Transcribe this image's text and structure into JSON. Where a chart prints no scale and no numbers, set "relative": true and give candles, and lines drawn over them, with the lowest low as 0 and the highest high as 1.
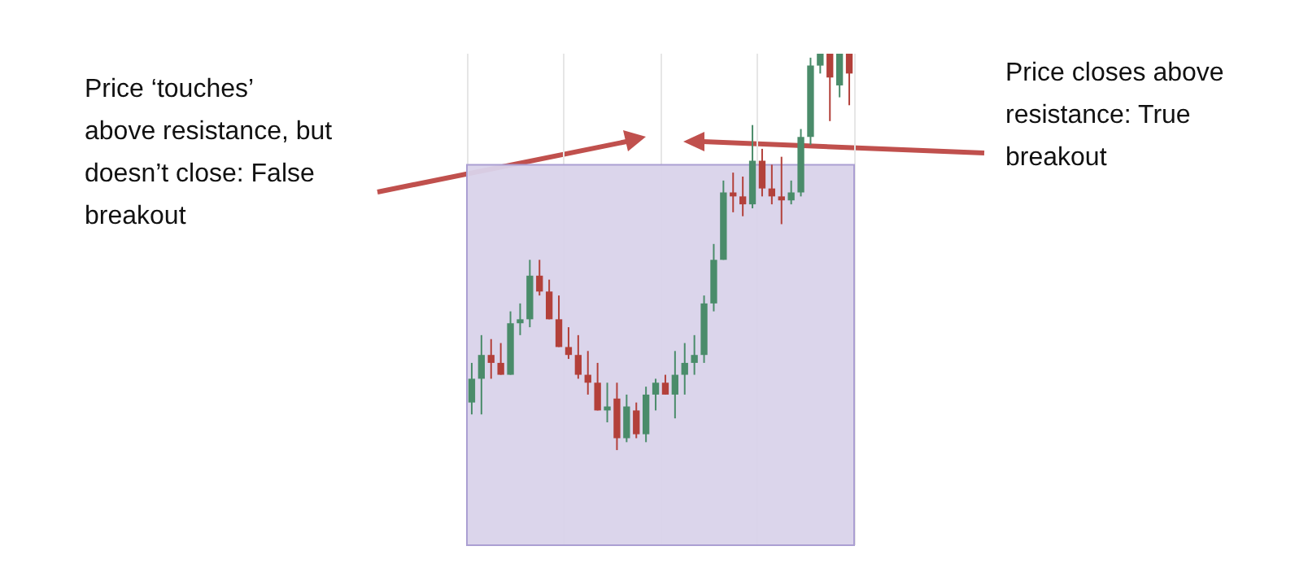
{
  "chart_data": {
    "type": "candlestick",
    "relative": true,
    "grid": true,
    "categories": [
      null,
      null,
      null,
      null,
      null,
      null,
      null,
      null,
      null,
      null,
      null,
      null,
      null,
      null,
      null,
      null,
      null,
      null,
      null,
      null,
      null,
      null,
      null,
      null,
      null,
      null,
      null,
      null,
      null,
      null,
      null,
      null,
      null,
      null,
      null,
      null,
      null,
      null,
      null,
      null
    ],
    "ohlc": [
      [
        0.12,
        0.22,
        0.09,
        0.18
      ],
      [
        0.18,
        0.29,
        0.09,
        0.24
      ],
      [
        0.24,
        0.28,
        0.18,
        0.22
      ],
      [
        0.22,
        0.27,
        0.19,
        0.19
      ],
      [
        0.19,
        0.35,
        0.19,
        0.32
      ],
      [
        0.32,
        0.37,
        0.29,
        0.33
      ],
      [
        0.33,
        0.48,
        0.31,
        0.44
      ],
      [
        0.44,
        0.48,
        0.39,
        0.4
      ],
      [
        0.4,
        0.43,
        0.33,
        0.33
      ],
      [
        0.33,
        0.39,
        0.26,
        0.26
      ],
      [
        0.26,
        0.31,
        0.23,
        0.24
      ],
      [
        0.24,
        0.29,
        0.18,
        0.19
      ],
      [
        0.19,
        0.25,
        0.14,
        0.17
      ],
      [
        0.17,
        0.22,
        0.1,
        0.1
      ],
      [
        0.1,
        0.17,
        0.07,
        0.11
      ],
      [
        0.13,
        0.17,
        0,
        0.03
      ],
      [
        0.03,
        0.14,
        0.02,
        0.11
      ],
      [
        0.1,
        0.12,
        0.03,
        0.04
      ],
      [
        0.04,
        0.16,
        0.02,
        0.14
      ],
      [
        0.14,
        0.18,
        0.1,
        0.17
      ],
      [
        0.17,
        0.19,
        0.14,
        0.14
      ],
      [
        0.14,
        0.25,
        0.08,
        0.19
      ],
      [
        0.19,
        0.27,
        0.14,
        0.22
      ],
      [
        0.22,
        0.29,
        0.19,
        0.24
      ],
      [
        0.24,
        0.39,
        0.22,
        0.37
      ],
      [
        0.37,
        0.52,
        0.35,
        0.48
      ],
      [
        0.48,
        0.68,
        0.48,
        0.65
      ],
      [
        0.65,
        0.7,
        0.6,
        0.64
      ],
      [
        0.64,
        0.69,
        0.59,
        0.62
      ],
      [
        0.62,
        0.82,
        0.61,
        0.73
      ],
      [
        0.73,
        0.76,
        0.64,
        0.66
      ],
      [
        0.66,
        0.72,
        0.62,
        0.64
      ],
      [
        0.64,
        0.74,
        0.57,
        0.63
      ],
      [
        0.63,
        0.68,
        0.62,
        0.65
      ],
      [
        0.65,
        0.81,
        0.64,
        0.79
      ],
      [
        0.79,
        0.99,
        0.77,
        0.97
      ],
      [
        0.97,
        1,
        0.95,
        1
      ],
      [
        1,
        1,
        0.83,
        0.94
      ],
      [
        0.92,
        1,
        0.89,
        1
      ],
      [
        1,
        1,
        0.87,
        0.95
      ]
    ],
    "colors": [
      "#4a8c6a",
      "#4a8c6a",
      "#b3403a",
      "#b3403a",
      "#4a8c6a",
      "#4a8c6a",
      "#4a8c6a",
      "#b3403a",
      "#b3403a",
      "#b3403a",
      "#b3403a",
      "#b3403a",
      "#b3403a",
      "#b3403a",
      "#4a8c6a",
      "#b3403a",
      "#4a8c6a",
      "#b3403a",
      "#4a8c6a",
      "#4a8c6a",
      "#b3403a",
      "#4a8c6a",
      "#4a8c6a",
      "#4a8c6a",
      "#4a8c6a",
      "#4a8c6a",
      "#4a8c6a",
      "#b3403a",
      "#b3403a",
      "#4a8c6a",
      "#b3403a",
      "#b3403a",
      "#b3403a",
      "#4a8c6a",
      "#4a8c6a",
      "#4a8c6a",
      "#4a8c6a",
      "#b3403a",
      "#4a8c6a",
      "#b3403a"
    ],
    "bands": [
      {
        "axis": "y",
        "from": -0.24,
        "to": 0.72,
        "color": "#d9d3ea"
      }
    ],
    "annotations": [
      "Price ‘touches’ above resistance, but doesn’t close: False breakout",
      "Price closes above resistance: True breakout"
    ]
  }
}
